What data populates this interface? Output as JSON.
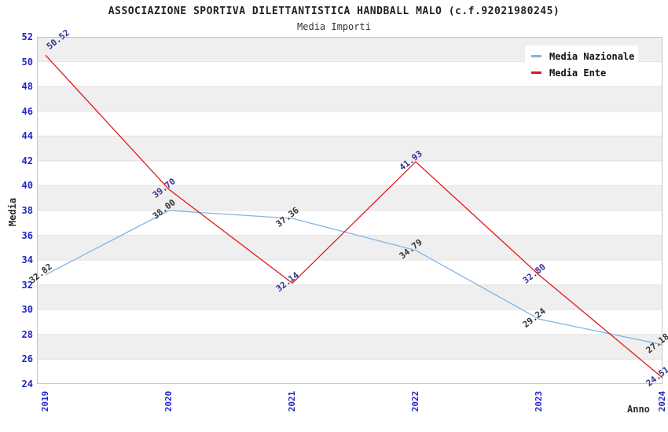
{
  "header": {
    "title": "ASSOCIAZIONE SPORTIVA DILETTANTISTICA HANDBALL MALO (c.f.92021980245)",
    "subtitle": "Media Importi"
  },
  "colors": {
    "tick_label_blue": "#2424cc",
    "nazionale_line": "#7fb5e5",
    "ente_line": "#e01717",
    "nazionale_point_label": "#333333",
    "ente_point_label": "#333399",
    "band_gray": "#efefef",
    "band_white": "#ffffff",
    "grid_line": "#e3e3e3",
    "plot_border": "#c6c6c6",
    "title_text": "#1f1f1f"
  },
  "chart_data": {
    "type": "line",
    "title": "ASSOCIAZIONE SPORTIVA DILETTANTISTICA HANDBALL MALO (c.f.92021980245)",
    "subtitle": "Media Importi",
    "xlabel": "Anno",
    "ylabel": "Media",
    "categories": [
      "2019",
      "2020",
      "2021",
      "2022",
      "2023",
      "2024"
    ],
    "ylim": [
      24,
      52
    ],
    "ytick_step": 2,
    "yticks": [
      52,
      50,
      48,
      46,
      44,
      42,
      40,
      38,
      36,
      34,
      32,
      30,
      28,
      26,
      24
    ],
    "grid": "horizontal-alternating-bands",
    "legend_position": "top-right",
    "series": [
      {
        "name": "Media Nazionale",
        "color": "#7fb5e5",
        "values": [
          32.82,
          38.0,
          37.36,
          34.79,
          29.24,
          27.18
        ],
        "labels": [
          "32.82",
          "38.00",
          "37.36",
          "34.79",
          "29.24",
          "27.18"
        ]
      },
      {
        "name": "Media Ente",
        "color": "#e01717",
        "values": [
          50.52,
          39.7,
          32.14,
          41.93,
          32.8,
          24.51
        ],
        "labels": [
          "50.52",
          "39.70",
          "32.14",
          "41.93",
          "32.80",
          "24.51"
        ]
      }
    ]
  }
}
